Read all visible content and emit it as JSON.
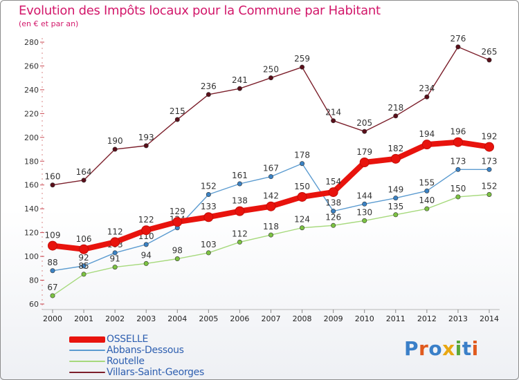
{
  "header": {
    "title": "Evolution des Impôts locaux pour la Commune par Habitant",
    "subtitle": "(en € et par an)"
  },
  "brand": {
    "text": "Proxiti",
    "letter_colors": [
      "#3a7fc8",
      "#e05a1e",
      "#3a7fc8",
      "#e8a712",
      "#58a83a",
      "#3a7fc8",
      "#e05a1e"
    ]
  },
  "chart_data": {
    "type": "line",
    "categories": [
      "2000",
      "2001",
      "2002",
      "2003",
      "2004",
      "2005",
      "2006",
      "2007",
      "2008",
      "2009",
      "2010",
      "2011",
      "2012",
      "2013",
      "2014"
    ],
    "ylim": [
      60,
      280
    ],
    "yticks": [
      60,
      80,
      100,
      120,
      140,
      160,
      180,
      200,
      220,
      240,
      260,
      280
    ],
    "grid": false,
    "legend_position": "bottom-left",
    "series": [
      {
        "name": "Villars-Saint-Georges",
        "color": "#7b1e2a",
        "marker_color": "#5a0f1a",
        "values": [
          160,
          164,
          190,
          193,
          215,
          236,
          241,
          250,
          259,
          214,
          205,
          218,
          234,
          276,
          265
        ]
      },
      {
        "name": "Abbans-Dessous",
        "color": "#5b9bd0",
        "marker_color": "#3b82c4",
        "values": [
          88,
          92,
          103,
          110,
          124,
          152,
          161,
          167,
          178,
          138,
          144,
          149,
          155,
          173,
          173
        ]
      },
      {
        "name": "Routelle",
        "color": "#a6d97c",
        "marker_color": "#7cc242",
        "values": [
          67,
          85,
          91,
          94,
          98,
          103,
          112,
          118,
          124,
          126,
          130,
          135,
          140,
          150,
          152
        ]
      },
      {
        "name": "OSSELLE",
        "color": "#e8130d",
        "marker_color": "#e8130d",
        "values": [
          109,
          106,
          112,
          122,
          129,
          133,
          138,
          142,
          150,
          154,
          179,
          182,
          194,
          196,
          192
        ]
      }
    ],
    "legend_order": [
      "OSSELLE",
      "Abbans-Dessous",
      "Routelle",
      "Villars-Saint-Georges"
    ]
  }
}
